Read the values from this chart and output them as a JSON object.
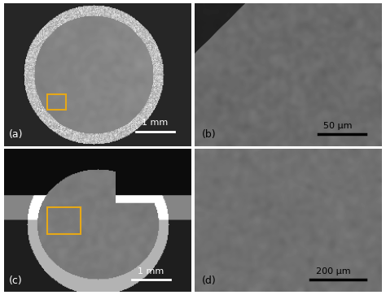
{
  "figsize": [
    4.74,
    3.63
  ],
  "dpi": 100,
  "background_color": "#ffffff",
  "label_a": "(a)",
  "label_b": "(b)",
  "label_c": "(c)",
  "label_d": "(d)",
  "scalebar_a": "1 mm",
  "scalebar_b": "50 μm",
  "scalebar_c": "1 mm",
  "scalebar_d": "200 μm",
  "box_color": "#e6a817",
  "label_fontsize": 9,
  "scalebar_fontsize": 8,
  "outer_bg": "#c8c8c8",
  "inner_bg_a": "#787878",
  "inner_bg_b": "#686868",
  "inner_bg_c": "#707070",
  "inner_bg_d": "#656565"
}
